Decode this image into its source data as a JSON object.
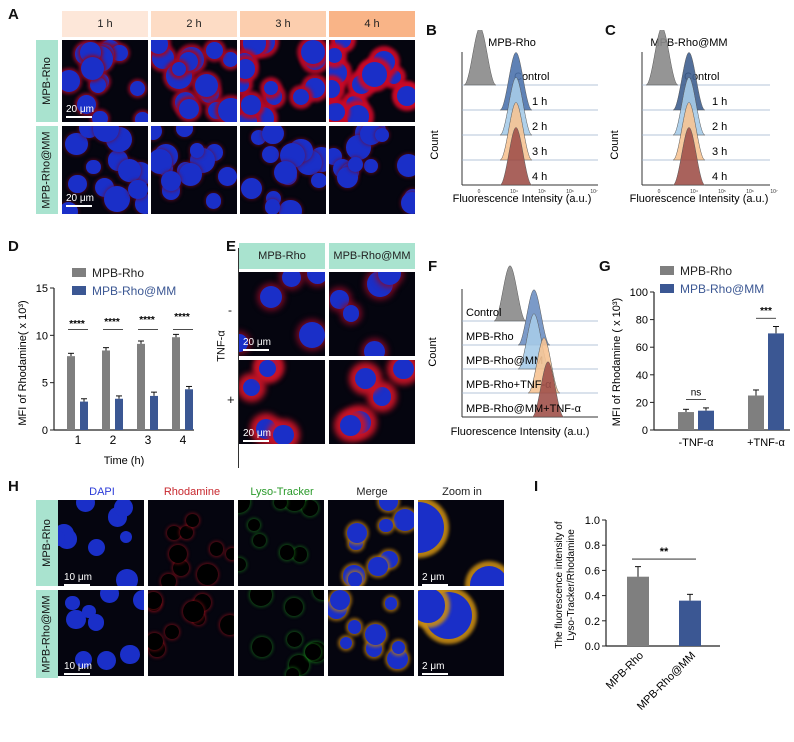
{
  "panels": {
    "A": "A",
    "B": "B",
    "C": "C",
    "D": "D",
    "E": "E",
    "F": "F",
    "G": "G",
    "H": "H",
    "I": "I"
  },
  "panelA": {
    "time_headers": [
      "1 h",
      "2 h",
      "3 h",
      "4 h"
    ],
    "header_colors": [
      "#fde7d9",
      "#fddcc5",
      "#fcceae",
      "#f9b487"
    ],
    "rows": [
      "MPB-Rho",
      "MPB-Rho@MM"
    ],
    "scale": "20 μm"
  },
  "panelB": {
    "title": "MPB-Rho",
    "labels": [
      "Control",
      "1 h",
      "2 h",
      "3 h",
      "4 h"
    ],
    "colors": [
      "#8a8a8a",
      "#4c73ad",
      "#a6cbe8",
      "#f6c394",
      "#a0514a"
    ],
    "ylabel": "Count",
    "xlabel": "Fluorescence Intensity (a.u.)",
    "ticks": [
      "0",
      "10⁴",
      "10⁵",
      "10⁶",
      "10⁷"
    ]
  },
  "panelC": {
    "title": "MPB-Rho@MM",
    "labels": [
      "Control",
      "1 h",
      "2 h",
      "3 h",
      "4 h"
    ],
    "colors": [
      "#8a8a8a",
      "#3f5f8f",
      "#a6cbe8",
      "#f6c394",
      "#a0514a"
    ],
    "ylabel": "Count",
    "xlabel": "Fluorescence Intensity (a.u.)",
    "ticks": [
      "0",
      "10⁴",
      "10⁵",
      "10⁶",
      "10⁷"
    ]
  },
  "chart_data": [
    {
      "type": "bar",
      "panel": "D",
      "categories": [
        "1",
        "2",
        "3",
        "4"
      ],
      "series": [
        {
          "name": "MPB-Rho",
          "values": [
            7.8,
            8.4,
            9.1,
            9.8
          ],
          "errors": [
            0.3,
            0.3,
            0.3,
            0.3
          ],
          "color": "#7f7f7f"
        },
        {
          "name": "MPB-Rho@MM",
          "values": [
            3.0,
            3.3,
            3.6,
            4.3
          ],
          "errors": [
            0.3,
            0.3,
            0.4,
            0.3
          ],
          "color": "#3b5793"
        }
      ],
      "xlabel": "Time (h)",
      "ylabel": "MFI of Rhodamine( x 10³)",
      "ylim": [
        0,
        15
      ],
      "yticks": [
        "0",
        "5",
        "10",
        "15"
      ],
      "significance": [
        "****",
        "****",
        "****",
        "****"
      ]
    },
    {
      "type": "bar",
      "panel": "G",
      "categories": [
        "-TNF-α",
        "+TNF-α"
      ],
      "series": [
        {
          "name": "MPB-Rho",
          "values": [
            13,
            25
          ],
          "errors": [
            2,
            4
          ],
          "color": "#7f7f7f"
        },
        {
          "name": "MPB-Rho@MM",
          "values": [
            14,
            70
          ],
          "errors": [
            2,
            5
          ],
          "color": "#3b5793"
        }
      ],
      "ylabel": "MFI of Rhodamine ( x 10³)",
      "ylim": [
        0,
        100
      ],
      "yticks": [
        "0",
        "20",
        "40",
        "60",
        "80",
        "100"
      ],
      "significance": [
        "ns",
        "***"
      ]
    },
    {
      "type": "bar",
      "panel": "I",
      "categories": [
        "MPB-Rho",
        "MPB-Rho@MM"
      ],
      "values": [
        0.55,
        0.36
      ],
      "errors": [
        0.08,
        0.05
      ],
      "colors": [
        "#7f7f7f",
        "#3b5793"
      ],
      "ylabel": "The fluorescence intensity of Lyso-Tracker/Rhodamine",
      "ylim": [
        0,
        1.0
      ],
      "yticks": [
        "0.0",
        "0.2",
        "0.4",
        "0.6",
        "0.8",
        "1.0"
      ],
      "significance": "**"
    }
  ],
  "panelE": {
    "headers": [
      "MPB-Rho",
      "MPB-Rho@MM"
    ],
    "condition_label": "TNF-α",
    "rows": [
      "-",
      "+"
    ],
    "scale": "20 μm"
  },
  "panelF": {
    "labels": [
      "Control",
      "MPB-Rho",
      "MPB-Rho@MM",
      "MPB-Rho+TNF-α",
      "MPB-Rho@MM+TNF-α"
    ],
    "colors": [
      "#8a8a8a",
      "#6d8fc2",
      "#a6cbe8",
      "#f6c394",
      "#a0514a"
    ],
    "ylabel": "Count",
    "xlabel": "Fluorescence Intensity (a.u.)"
  },
  "panelH": {
    "channels": [
      "DAPI",
      "Rhodamine",
      "Lyso-Tracker",
      "Merge",
      "Zoom in"
    ],
    "channel_colors": [
      "#2a3ad8",
      "#c8282e",
      "#2a9a2a",
      "#222222",
      "#222222"
    ],
    "rows": [
      "MPB-Rho",
      "MPB-Rho@MM"
    ],
    "scale_main": "10 μm",
    "scale_zoom": "2 μm"
  }
}
